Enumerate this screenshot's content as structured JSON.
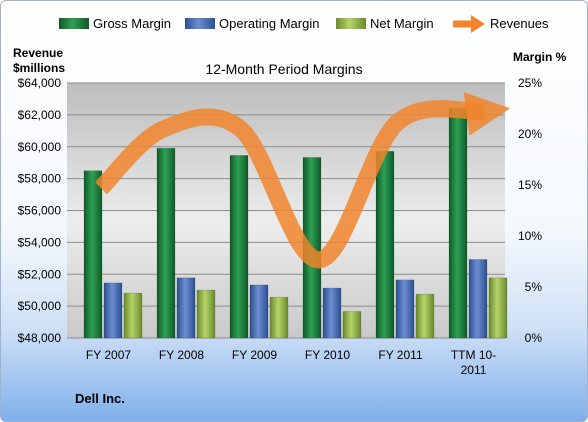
{
  "chart_data": {
    "type": "bar",
    "title": "12-Month Period Margins",
    "company": "Dell Inc.",
    "categories": [
      "FY 2007",
      "FY 2008",
      "FY 2009",
      "FY 2010",
      "FY 2011",
      "TTM 10-2011"
    ],
    "category_lines": [
      [
        "FY 2007"
      ],
      [
        "FY 2008"
      ],
      [
        "FY 2009"
      ],
      [
        "FY 2010"
      ],
      [
        "FY 2011"
      ],
      [
        "TTM 10-",
        "2011"
      ]
    ],
    "series": [
      {
        "name": "Gross Margin",
        "axis": "right",
        "color": "#1f7a3c",
        "values": [
          16.4,
          18.6,
          17.9,
          17.7,
          18.3,
          22.5
        ]
      },
      {
        "name": "Operating Margin",
        "axis": "right",
        "color": "#4a70b6",
        "values": [
          5.4,
          5.9,
          5.2,
          4.9,
          5.7,
          7.7
        ]
      },
      {
        "name": "Net Margin",
        "axis": "right",
        "color": "#8fb446",
        "values": [
          4.4,
          4.7,
          4.0,
          2.6,
          4.3,
          5.9
        ]
      },
      {
        "name": "Revenues",
        "axis": "left",
        "type": "line",
        "color": "#f0852b",
        "values": [
          57400,
          61100,
          61100,
          52900,
          61500,
          62200
        ]
      }
    ],
    "left_axis": {
      "label_line1": "Revenue",
      "label_line2": "$millions",
      "min": 48000,
      "max": 64000,
      "step": 2000,
      "ticks": [
        "$48,000",
        "$50,000",
        "$52,000",
        "$54,000",
        "$56,000",
        "$58,000",
        "$60,000",
        "$62,000",
        "$64,000"
      ]
    },
    "right_axis": {
      "label": "Margin %",
      "min": 0,
      "max": 25,
      "step": 5,
      "ticks": [
        "0%",
        "5%",
        "10%",
        "15%",
        "20%",
        "25%"
      ]
    },
    "legend_position": "top",
    "grid": true
  }
}
